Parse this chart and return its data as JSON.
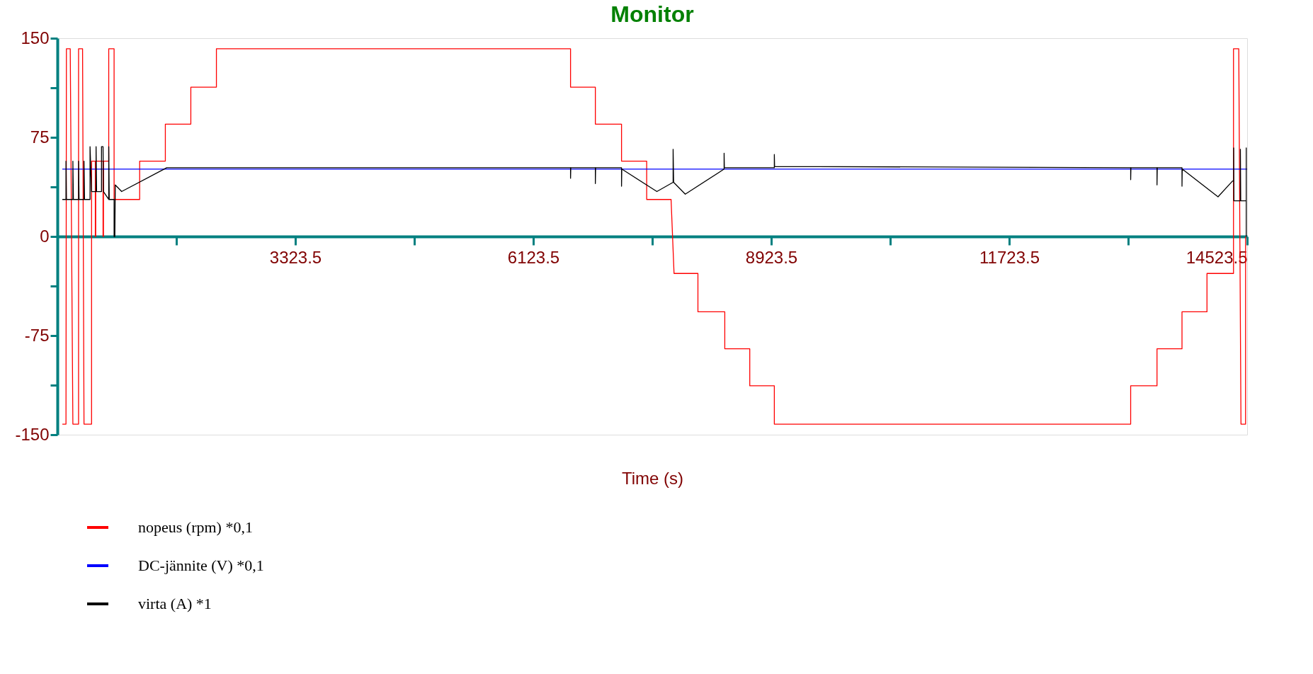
{
  "chart_data": {
    "type": "line",
    "title": "Monitor",
    "xlabel": "Time (s)",
    "xlim": [
      523.5,
      14523.5
    ],
    "xticks": [
      {
        "value": 1923.5,
        "label": null
      },
      3323.5,
      {
        "value": 4723.5,
        "label": null
      },
      6123.5,
      {
        "value": 7523.5,
        "label": null
      },
      8923.5,
      {
        "value": 10323.5,
        "label": null
      },
      11723.5,
      {
        "value": 13123.5,
        "label": null
      },
      14523.5
    ],
    "ylim": [
      -150,
      150
    ],
    "yticks": [
      -150,
      {
        "value": -112.5,
        "label": null
      },
      -75,
      {
        "value": -37.5,
        "label": null
      },
      0,
      {
        "value": 37.5,
        "label": null
      },
      75,
      {
        "value": 112.5,
        "label": null
      },
      150
    ],
    "grid": false,
    "legend": "bottom",
    "marker": "none",
    "line_style": "solid",
    "series": [
      {
        "name": "nopeus (rpm) *0,1",
        "color": "#ff0000",
        "x": [
          582,
          625,
          630,
          675,
          706,
          773,
          773,
          820,
          837,
          895,
          926,
          926,
          970,
          970,
          975,
          975,
          1061,
          1061,
          1066,
          1066,
          1128,
          1128,
          1191,
          1191,
          1492,
          1492,
          1794,
          1794,
          2094,
          2094,
          2395,
          2395,
          6562,
          6562,
          6854,
          6854,
          7162,
          7162,
          7458,
          7458,
          7745,
          7780,
          8061,
          8061,
          8377,
          8377,
          8671,
          8671,
          8960,
          8960,
          13153,
          13153,
          13463,
          13463,
          13757,
          13757,
          14051,
          14051,
          14363,
          14363,
          14425,
          14451,
          14505,
          14505
        ],
        "values": [
          -142,
          -142,
          142,
          142,
          -142,
          -142,
          142,
          142,
          -142,
          -142,
          -142,
          57,
          57,
          0,
          0,
          57,
          57,
          0,
          0,
          57,
          57,
          142,
          142,
          28,
          28,
          57,
          57,
          85,
          85,
          113,
          113,
          142,
          142,
          113,
          113,
          85,
          85,
          57,
          57,
          28,
          28,
          -28,
          -28,
          -57,
          -57,
          -85,
          -85,
          -113,
          -113,
          -142,
          -142,
          -113,
          -113,
          -85,
          -85,
          -57,
          -57,
          -28,
          -28,
          142,
          142,
          -142,
          -142,
          0
        ]
      },
      {
        "name": "DC-jännite (V) *0,1",
        "color": "#0000ff",
        "x": [
          582,
          2000,
          4000,
          6000,
          8000,
          10000,
          12000,
          14523.5
        ],
        "values": [
          51,
          51,
          51,
          51,
          51,
          51,
          51,
          51
        ]
      },
      {
        "name": "virta (A) *1",
        "color": "#000000",
        "x": [
          582,
          625,
          625,
          630,
          706,
          706,
          712,
          773,
          773,
          779,
          837,
          837,
          843,
          908,
          908,
          926,
          979,
          979,
          985,
          1043,
          1043,
          1061,
          1066,
          1128,
          1128,
          1134,
          1191,
          1191,
          1200,
          1205,
          1280,
          1811,
          6562,
          6562,
          6565,
          6854,
          6854,
          6857,
          7162,
          7162,
          7165,
          7578,
          7769,
          7769,
          7775,
          7912,
          8369,
          8369,
          8372,
          8960,
          8960,
          8963,
          13153,
          13153,
          13156,
          13463,
          13463,
          13466,
          13757,
          13757,
          13760,
          14181,
          14352,
          14365,
          14365,
          14368,
          14444,
          14444,
          14448,
          14513,
          14513,
          14513
        ],
        "values": [
          28,
          28,
          57,
          28,
          28,
          57,
          28,
          28,
          57,
          28,
          28,
          57,
          28,
          28,
          68,
          34,
          34,
          68,
          34,
          34,
          68,
          68,
          34,
          28,
          68,
          28,
          28,
          0,
          0,
          39,
          34,
          52,
          52,
          44,
          52,
          52,
          40,
          52,
          52,
          38,
          51,
          34,
          41,
          66,
          41,
          32,
          51,
          63,
          52,
          52,
          62,
          53,
          52,
          43,
          52,
          52,
          39,
          52,
          52,
          38,
          51,
          30,
          42,
          42,
          67,
          27,
          27,
          66,
          27,
          27,
          67,
          0
        ]
      }
    ]
  }
}
